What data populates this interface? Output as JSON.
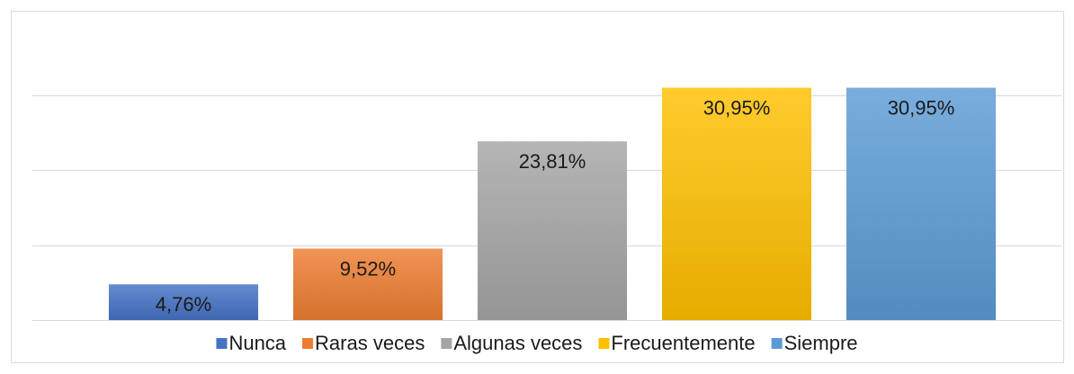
{
  "chart_data": {
    "type": "bar",
    "categories": [
      "Nunca",
      "Raras veces",
      "Algunas veces",
      "Frecuentemente",
      "Siempre"
    ],
    "values": [
      4.76,
      9.52,
      23.81,
      30.95,
      30.95
    ],
    "value_labels": [
      "4,76%",
      "9,52%",
      "23,81%",
      "30,95%",
      "30,95%"
    ],
    "colors": [
      "#4472c4",
      "#ed7d31",
      "#a5a5a5",
      "#ffc000",
      "#5b9bd5"
    ],
    "ylim": [
      0,
      40
    ],
    "yticks": [
      0,
      10,
      20,
      30
    ],
    "grid": true,
    "legend": "bottom"
  }
}
